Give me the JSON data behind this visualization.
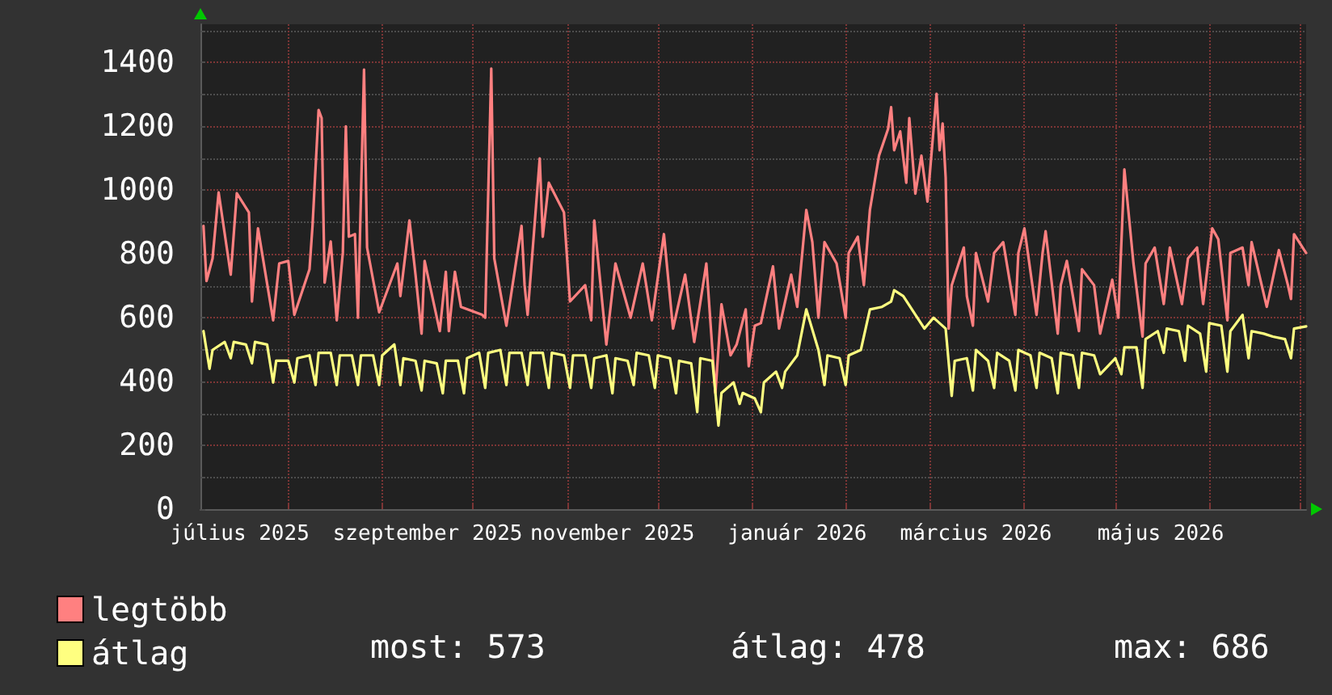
{
  "chart_data": {
    "type": "line",
    "series": [
      {
        "name": "legtöbb",
        "color": "#ff8080",
        "x": [
          "2025-07-04",
          "2025-07-05",
          "2025-07-07",
          "2025-07-09",
          "2025-07-13",
          "2025-07-15",
          "2025-07-19",
          "2025-07-20",
          "2025-07-22",
          "2025-07-27",
          "2025-07-29",
          "2025-08-01",
          "2025-08-03",
          "2025-08-08",
          "2025-08-09",
          "2025-08-11",
          "2025-08-12",
          "2025-08-13",
          "2025-08-15",
          "2025-08-17",
          "2025-08-19",
          "2025-08-20",
          "2025-08-21",
          "2025-08-23",
          "2025-08-24",
          "2025-08-26",
          "2025-08-27",
          "2025-08-31",
          "2025-09-06",
          "2025-09-07",
          "2025-09-10",
          "2025-09-12",
          "2025-09-14",
          "2025-09-15",
          "2025-09-20",
          "2025-09-22",
          "2025-09-23",
          "2025-09-25",
          "2025-09-27",
          "2025-10-04",
          "2025-10-05",
          "2025-10-07",
          "2025-10-08",
          "2025-10-12",
          "2025-10-17",
          "2025-10-18",
          "2025-10-19",
          "2025-10-23",
          "2025-10-24",
          "2025-10-26",
          "2025-10-31",
          "2025-11-02",
          "2025-11-07",
          "2025-11-09",
          "2025-11-10",
          "2025-11-14",
          "2025-11-17",
          "2025-11-22",
          "2025-11-26",
          "2025-11-29",
          "2025-12-03",
          "2025-12-06",
          "2025-12-10",
          "2025-12-13",
          "2025-12-17",
          "2025-12-19",
          "2025-12-20",
          "2025-12-22",
          "2025-12-25",
          "2025-12-27",
          "2025-12-30",
          "2025-12-31",
          "2026-01-02",
          "2026-01-04",
          "2026-01-08",
          "2026-01-10",
          "2026-01-14",
          "2026-01-16",
          "2026-01-19",
          "2026-01-21",
          "2026-01-23",
          "2026-01-25",
          "2026-01-29",
          "2026-02-01",
          "2026-02-02",
          "2026-02-05",
          "2026-02-07",
          "2026-02-09",
          "2026-02-12",
          "2026-02-15",
          "2026-02-16",
          "2026-02-17",
          "2026-02-19",
          "2026-02-21",
          "2026-02-22",
          "2026-02-24",
          "2026-02-26",
          "2026-02-28",
          "2026-03-03",
          "2026-03-04",
          "2026-03-05",
          "2026-03-06",
          "2026-03-07",
          "2026-03-08",
          "2026-03-12",
          "2026-03-13",
          "2026-03-15",
          "2026-03-16",
          "2026-03-20",
          "2026-03-22",
          "2026-03-25",
          "2026-03-29",
          "2026-03-30",
          "2026-04-01",
          "2026-04-05",
          "2026-04-07",
          "2026-04-08",
          "2026-04-12",
          "2026-04-13",
          "2026-04-15",
          "2026-04-19",
          "2026-04-20",
          "2026-04-24",
          "2026-04-26",
          "2026-04-30",
          "2026-05-02",
          "2026-05-04",
          "2026-05-07",
          "2026-05-10",
          "2026-05-11",
          "2026-05-14",
          "2026-05-17",
          "2026-05-19",
          "2026-05-23",
          "2026-05-25",
          "2026-05-28",
          "2026-05-30",
          "2026-06-02",
          "2026-06-04",
          "2026-06-07",
          "2026-06-08",
          "2026-06-12",
          "2026-06-14",
          "2026-06-15",
          "2026-06-20",
          "2026-06-24",
          "2026-06-27",
          "2026-06-28",
          "2026-06-29",
          "2026-07-03"
        ],
        "values": [
          888,
          715,
          786,
          993,
          735,
          990,
          930,
          651,
          880,
          592,
          770,
          778,
          609,
          752,
          888,
          1251,
          1226,
          710,
          839,
          592,
          804,
          1200,
          854,
          862,
          600,
          1378,
          820,
          617,
          770,
          668,
          905,
          735,
          550,
          778,
          558,
          744,
          558,
          744,
          634,
          609,
          600,
          1381,
          786,
          575,
          888,
          702,
          609,
          1099,
          854,
          1023,
          930,
          651,
          702,
          592,
          905,
          516,
          770,
          600,
          770,
          592,
          862,
          566,
          735,
          524,
          770,
          499,
          364,
          642,
          482,
          516,
          626,
          448,
          575,
          583,
          761,
          566,
          735,
          634,
          938,
          837,
          600,
          837,
          770,
          600,
          803,
          854,
          702,
          938,
          1108,
          1192,
          1260,
          1125,
          1184,
          1023,
          1226,
          989,
          1108,
          964,
          1302,
          1125,
          1209,
          1040,
          566,
          702,
          820,
          668,
          575,
          803,
          651,
          803,
          837,
          609,
          803,
          880,
          609,
          803,
          871,
          550,
          702,
          778,
          558,
          752,
          702,
          550,
          719,
          600,
          1065,
          770,
          541,
          770,
          820,
          643,
          820,
          643,
          786,
          820,
          643,
          880,
          846,
          592,
          803,
          820,
          702,
          837,
          634,
          812,
          702,
          659,
          862,
          803
        ]
      },
      {
        "name": "átlag",
        "color": "#ffff80",
        "x": [
          "2025-07-04",
          "2025-07-06",
          "2025-07-07",
          "2025-07-11",
          "2025-07-13",
          "2025-07-14",
          "2025-07-18",
          "2025-07-20",
          "2025-07-21",
          "2025-07-25",
          "2025-07-27",
          "2025-07-28",
          "2025-08-01",
          "2025-08-03",
          "2025-08-04",
          "2025-08-08",
          "2025-08-10",
          "2025-08-11",
          "2025-08-15",
          "2025-08-17",
          "2025-08-18",
          "2025-08-22",
          "2025-08-24",
          "2025-08-25",
          "2025-08-29",
          "2025-08-31",
          "2025-09-01",
          "2025-09-05",
          "2025-09-07",
          "2025-09-08",
          "2025-09-12",
          "2025-09-14",
          "2025-09-15",
          "2025-09-19",
          "2025-09-21",
          "2025-09-22",
          "2025-09-26",
          "2025-09-28",
          "2025-09-29",
          "2025-10-03",
          "2025-10-05",
          "2025-10-06",
          "2025-10-10",
          "2025-10-12",
          "2025-10-13",
          "2025-10-17",
          "2025-10-19",
          "2025-10-20",
          "2025-10-24",
          "2025-10-26",
          "2025-10-27",
          "2025-10-31",
          "2025-11-02",
          "2025-11-03",
          "2025-11-07",
          "2025-11-09",
          "2025-11-10",
          "2025-11-14",
          "2025-11-16",
          "2025-11-17",
          "2025-11-21",
          "2025-11-23",
          "2025-11-24",
          "2025-11-28",
          "2025-11-30",
          "2025-12-01",
          "2025-12-05",
          "2025-12-07",
          "2025-12-08",
          "2025-12-12",
          "2025-12-14",
          "2025-12-15",
          "2025-12-19",
          "2025-12-21",
          "2025-12-22",
          "2025-12-26",
          "2025-12-28",
          "2025-12-29",
          "2026-01-02",
          "2026-01-04",
          "2026-01-05",
          "2026-01-09",
          "2026-01-11",
          "2026-01-12",
          "2026-01-16",
          "2026-01-19",
          "2026-01-23",
          "2026-01-25",
          "2026-01-26",
          "2026-01-30",
          "2026-02-01",
          "2026-02-02",
          "2026-02-06",
          "2026-02-09",
          "2026-02-13",
          "2026-02-16",
          "2026-02-17",
          "2026-02-20",
          "2026-02-27",
          "2026-03-02",
          "2026-03-06",
          "2026-03-08",
          "2026-03-09",
          "2026-03-13",
          "2026-03-15",
          "2026-03-16",
          "2026-03-20",
          "2026-03-22",
          "2026-03-23",
          "2026-03-27",
          "2026-03-29",
          "2026-03-30",
          "2026-04-03",
          "2026-04-05",
          "2026-04-06",
          "2026-04-10",
          "2026-04-12",
          "2026-04-13",
          "2026-04-17",
          "2026-04-19",
          "2026-04-20",
          "2026-04-24",
          "2026-04-26",
          "2026-05-01",
          "2026-05-03",
          "2026-05-04",
          "2026-05-08",
          "2026-05-10",
          "2026-05-11",
          "2026-05-15",
          "2026-05-17",
          "2026-05-18",
          "2026-05-22",
          "2026-05-24",
          "2026-05-25",
          "2026-05-29",
          "2026-05-31",
          "2026-06-01",
          "2026-06-05",
          "2026-06-07",
          "2026-06-08",
          "2026-06-12",
          "2026-06-14",
          "2026-06-15",
          "2026-06-19",
          "2026-06-22",
          "2026-06-26",
          "2026-06-28",
          "2026-06-29",
          "2026-07-03"
        ],
        "values": [
          558,
          440,
          499,
          524,
          473,
          524,
          516,
          457,
          524,
          516,
          397,
          465,
          465,
          397,
          473,
          482,
          389,
          490,
          490,
          389,
          482,
          482,
          389,
          482,
          482,
          389,
          482,
          516,
          389,
          473,
          465,
          372,
          465,
          457,
          363,
          465,
          465,
          363,
          473,
          490,
          380,
          490,
          499,
          389,
          490,
          490,
          389,
          490,
          490,
          380,
          490,
          482,
          380,
          482,
          482,
          380,
          473,
          482,
          363,
          473,
          465,
          389,
          490,
          482,
          380,
          482,
          473,
          363,
          465,
          457,
          304,
          473,
          465,
          262,
          364,
          397,
          330,
          364,
          347,
          304,
          397,
          431,
          380,
          431,
          482,
          626,
          499,
          389,
          482,
          473,
          389,
          482,
          499,
          626,
          634,
          651,
          686,
          668,
          566,
          600,
          566,
          355,
          465,
          473,
          372,
          499,
          465,
          380,
          490,
          465,
          372,
          499,
          482,
          380,
          490,
          473,
          363,
          490,
          482,
          380,
          490,
          482,
          423,
          473,
          423,
          507,
          507,
          380,
          533,
          558,
          490,
          566,
          558,
          465,
          575,
          550,
          431,
          583,
          575,
          431,
          558,
          609,
          473,
          558,
          550,
          541,
          533,
          473,
          566,
          573
        ]
      }
    ],
    "xlim": [
      "2025-07-03",
      "2026-07-03"
    ],
    "xticks": [
      {
        "value": "2025-07-16",
        "label": "július 2025"
      },
      {
        "value": "2025-08-01",
        "label": null
      },
      {
        "value": "2025-09-01",
        "label": null
      },
      {
        "value": "2025-09-16",
        "label": "szeptember 2025"
      },
      {
        "value": "2025-10-01",
        "label": null
      },
      {
        "value": "2025-11-01",
        "label": null
      },
      {
        "value": "2025-11-16",
        "label": "november 2025"
      },
      {
        "value": "2025-12-01",
        "label": null
      },
      {
        "value": "2026-01-01",
        "label": null
      },
      {
        "value": "2026-01-16",
        "label": "január 2026"
      },
      {
        "value": "2026-02-01",
        "label": null
      },
      {
        "value": "2026-03-01",
        "label": null
      },
      {
        "value": "2026-03-16",
        "label": "március 2026"
      },
      {
        "value": "2026-04-01",
        "label": null
      },
      {
        "value": "2026-05-01",
        "label": null
      },
      {
        "value": "2026-05-16",
        "label": "május 2026"
      },
      {
        "value": "2026-06-01",
        "label": null
      },
      {
        "value": "2026-07-01",
        "label": null
      }
    ],
    "ylim": [
      0,
      1520
    ],
    "yticks": [
      0,
      {
        "value": 100,
        "label": null
      },
      200,
      {
        "value": 300,
        "label": null
      },
      400,
      {
        "value": 500,
        "label": null
      },
      600,
      {
        "value": 700,
        "label": null
      },
      800,
      {
        "value": 900,
        "label": null
      },
      1000,
      {
        "value": 1100,
        "label": null
      },
      1200,
      {
        "value": 1300,
        "label": null
      },
      1400,
      {
        "value": 1500,
        "label": null
      }
    ],
    "grid": true,
    "legend": "bottom left",
    "marker": "none",
    "line_style": "solid",
    "annotations": [
      "most: 573",
      "átlag: 478",
      "max: 686"
    ]
  }
}
